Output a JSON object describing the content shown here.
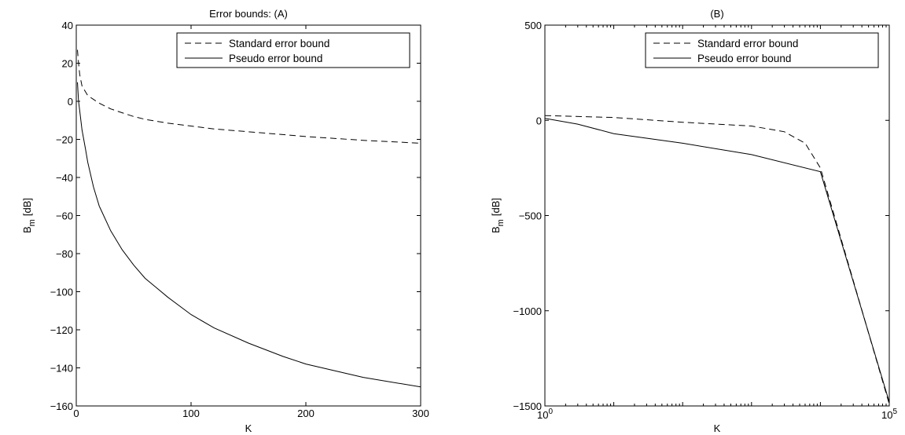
{
  "chart_data": [
    {
      "type": "line",
      "title": "Error bounds: (A)",
      "xlabel": "K",
      "ylabel": "B_m [dB]",
      "ylabel_main": "B",
      "ylabel_sub": "m",
      "ylabel_unit": "[dB]",
      "xscale": "linear",
      "xlim": [
        0,
        300
      ],
      "ylim": [
        -160,
        40
      ],
      "xticks": [
        0,
        100,
        200,
        300
      ],
      "xtick_labels": [
        "0",
        "100",
        "200",
        "300"
      ],
      "yticks": [
        -160,
        -140,
        -120,
        -100,
        -80,
        -60,
        -40,
        -20,
        0,
        20,
        40
      ],
      "ytick_labels": [
        "−160",
        "−140",
        "−120",
        "−100",
        "−80",
        "−60",
        "−40",
        "−20",
        "0",
        "20",
        "40"
      ],
      "grid": false,
      "legend_position": "top-right",
      "series": [
        {
          "name": "Standard error bound",
          "style": "dashed",
          "color": "#000000",
          "x": [
            1,
            2,
            3,
            5,
            8,
            10,
            15,
            20,
            30,
            40,
            50,
            60,
            80,
            100,
            120,
            150,
            180,
            200,
            250,
            300
          ],
          "y": [
            27,
            20,
            14,
            8,
            5,
            3,
            1,
            -1,
            -4,
            -6,
            -8,
            -9.5,
            -11.5,
            -13,
            -14.5,
            -16,
            -17.5,
            -18.5,
            -20.5,
            -22
          ]
        },
        {
          "name": "Pseudo error bound",
          "style": "solid",
          "color": "#000000",
          "x": [
            1,
            2,
            3,
            5,
            8,
            10,
            15,
            20,
            30,
            40,
            50,
            60,
            70,
            80,
            100,
            120,
            150,
            180,
            200,
            250,
            300
          ],
          "y": [
            10,
            0,
            -5,
            -15,
            -25,
            -32,
            -45,
            -55,
            -68,
            -78,
            -86,
            -93,
            -98,
            -103,
            -112,
            -119,
            -127,
            -134,
            -138,
            -145,
            -150
          ]
        }
      ]
    },
    {
      "type": "line",
      "title": "(B)",
      "xlabel": "K",
      "ylabel": "B_m [dB]",
      "ylabel_main": "B",
      "ylabel_sub": "m",
      "ylabel_unit": "[dB]",
      "xscale": "log",
      "xlim": [
        1,
        100000
      ],
      "ylim": [
        -1500,
        500
      ],
      "xticks": [
        1,
        100000
      ],
      "xtick_base": "10",
      "xtick_exponents": [
        "0",
        "5"
      ],
      "yticks": [
        -1500,
        -1000,
        -500,
        0,
        500
      ],
      "ytick_labels": [
        "−1500",
        "−1000",
        "−500",
        "0",
        "500"
      ],
      "grid": false,
      "legend_position": "top-right",
      "series": [
        {
          "name": "Standard error bound",
          "style": "dashed",
          "color": "#000000",
          "x": [
            1,
            10,
            100,
            1000,
            3000,
            6000,
            10000,
            100000
          ],
          "y": [
            25,
            15,
            -10,
            -30,
            -60,
            -120,
            -250,
            -1490
          ]
        },
        {
          "name": "Pseudo error bound",
          "style": "solid",
          "color": "#000000",
          "x": [
            1,
            3,
            10,
            100,
            1000,
            10000,
            100000
          ],
          "y": [
            10,
            -20,
            -70,
            -120,
            -180,
            -270,
            -1480
          ]
        }
      ]
    }
  ]
}
